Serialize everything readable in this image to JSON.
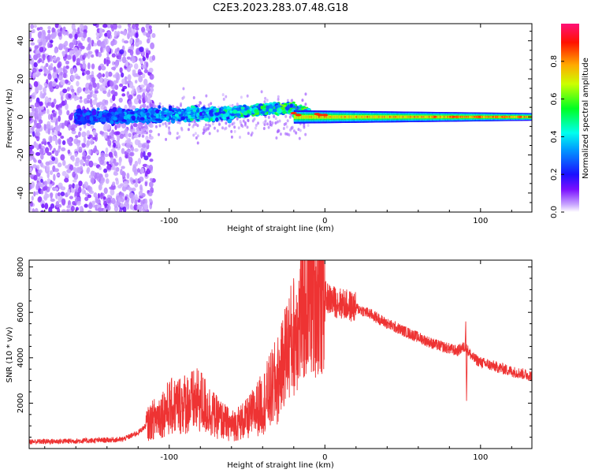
{
  "title": "C2E3.2023.283.07.48.G18",
  "colors": {
    "snr_line": "#ee3333",
    "background": "#ffffff",
    "axis": "#000000"
  },
  "chart_data": [
    {
      "type": "heatmap",
      "title": "C2E3.2023.283.07.48.G18",
      "xlabel": "Height of straight line (km)",
      "ylabel": "Frequency (Hz)",
      "xlim": [
        -190,
        133
      ],
      "ylim": [
        -50,
        49
      ],
      "xticks": [
        -100,
        0,
        100
      ],
      "yticks": [
        -40,
        -20,
        0,
        20,
        40
      ],
      "grid": false,
      "colorbar": {
        "label": "Normalized spectral amplitude",
        "range": [
          0.0,
          1.0
        ],
        "ticks": [
          "0.0",
          "0.2",
          "0.4",
          "0.6",
          "0.8"
        ],
        "colormap": "rainbow"
      }
    },
    {
      "type": "line",
      "xlabel": "Height of straight line (km)",
      "ylabel": "SNR (10 * v/v)",
      "xlim": [
        -190,
        133
      ],
      "ylim": [
        0,
        8300
      ],
      "xticks": [
        -100,
        0,
        100
      ],
      "yticks": [
        2000,
        4000,
        6000,
        8000
      ],
      "grid": false,
      "series": [
        {
          "x": [
            -190,
            -170,
            -150,
            -130,
            -120,
            -110,
            -100,
            -90,
            -80,
            -70,
            -60,
            -50,
            -40,
            -30,
            -25,
            -20,
            -15,
            -10,
            -5,
            0,
            5,
            10,
            20,
            30,
            40,
            50,
            60,
            70,
            80,
            85,
            90,
            95,
            100,
            110,
            120,
            133
          ],
          "y": [
            300,
            320,
            350,
            400,
            700,
            1300,
            1800,
            2000,
            2100,
            1400,
            1000,
            1300,
            2000,
            3000,
            4300,
            5000,
            6000,
            6800,
            6900,
            6700,
            6500,
            6400,
            6200,
            5900,
            5500,
            5200,
            4900,
            4600,
            4400,
            4300,
            4500,
            4000,
            3800,
            3600,
            3400,
            3200
          ]
        }
      ]
    }
  ]
}
